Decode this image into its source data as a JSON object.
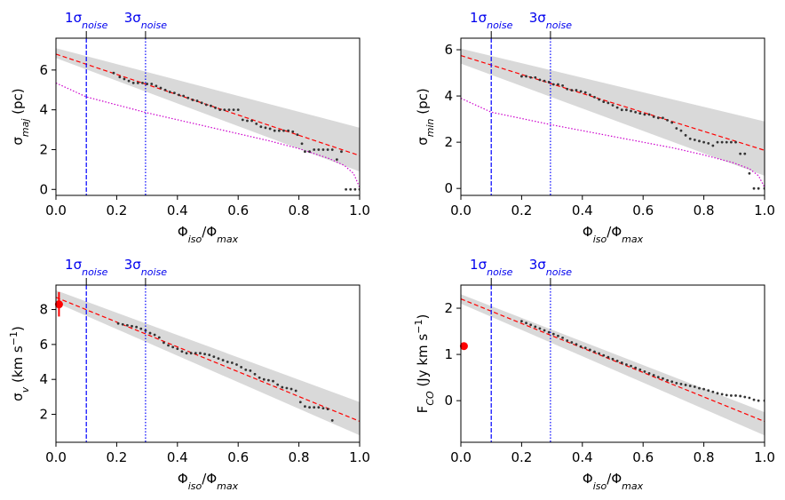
{
  "colors": {
    "band": "#d9d9d9",
    "fit": "#ff0000",
    "points": "#333333",
    "noise_line": "#0000ff",
    "purple": "#cc00cc",
    "marker": "#ff0000"
  },
  "noise_labels": {
    "one_sigma": "1σ",
    "three_sigma": "3σ",
    "sub": "noise"
  },
  "chart_data": [
    {
      "type": "scatter",
      "id": "sigma_maj",
      "title": "",
      "xlabel": "Φiso/Φmax",
      "ylabel": "σmaj (pc)",
      "xlim": [
        0,
        1
      ],
      "ylim": [
        -0.3,
        7.6
      ],
      "xticks": [
        0,
        0.2,
        0.4,
        0.6,
        0.8,
        1.0
      ],
      "xtick_labels": [
        "0.0",
        "0.2",
        "0.4",
        "0.6",
        "0.8",
        "1.0"
      ],
      "yticks": [
        0,
        2,
        4,
        6
      ],
      "ytick_labels": [
        "0",
        "2",
        "4",
        "6"
      ],
      "noise_lines": [
        0.1,
        0.295
      ],
      "fit": {
        "x": [
          0,
          1
        ],
        "y": [
          6.8,
          1.7
        ]
      },
      "band": {
        "x": [
          0,
          1
        ],
        "upper": [
          7.1,
          3.1
        ],
        "lower": [
          6.6,
          0.9
        ]
      },
      "curve": {
        "x": [
          0,
          0.1,
          0.3,
          0.5,
          0.7,
          0.8,
          0.9,
          0.95,
          0.98,
          1.0
        ],
        "y": [
          5.35,
          4.65,
          3.85,
          3.15,
          2.45,
          2.05,
          1.55,
          1.2,
          0.8,
          0.1
        ]
      },
      "points": {
        "x": [
          0.19,
          0.21,
          0.225,
          0.24,
          0.255,
          0.27,
          0.285,
          0.3,
          0.315,
          0.33,
          0.345,
          0.36,
          0.375,
          0.39,
          0.405,
          0.42,
          0.435,
          0.45,
          0.465,
          0.48,
          0.495,
          0.51,
          0.525,
          0.54,
          0.555,
          0.57,
          0.585,
          0.6,
          0.615,
          0.63,
          0.645,
          0.66,
          0.675,
          0.69,
          0.705,
          0.72,
          0.735,
          0.75,
          0.765,
          0.78,
          0.795,
          0.81,
          0.82,
          0.835,
          0.85,
          0.865,
          0.88,
          0.895,
          0.91,
          0.925,
          0.94,
          0.955,
          0.97,
          0.985,
          1.0
        ],
        "y": [
          5.85,
          5.65,
          5.55,
          5.45,
          5.35,
          5.35,
          5.35,
          5.3,
          5.3,
          5.2,
          5.1,
          5.0,
          4.9,
          4.85,
          4.75,
          4.7,
          4.6,
          4.5,
          4.45,
          4.35,
          4.25,
          4.2,
          4.1,
          4.0,
          4.0,
          4.0,
          4.0,
          4.0,
          3.5,
          3.45,
          3.45,
          3.3,
          3.15,
          3.1,
          3.05,
          2.95,
          2.95,
          2.95,
          2.95,
          2.9,
          2.75,
          2.3,
          1.9,
          1.9,
          2.0,
          2.0,
          2.0,
          2.0,
          2.0,
          1.5,
          1.9,
          0.0,
          0.0,
          0.0,
          0.0
        ]
      }
    },
    {
      "type": "scatter",
      "id": "sigma_min",
      "title": "",
      "xlabel": "Φiso/Φmax",
      "ylabel": "σmin (pc)",
      "xlim": [
        0,
        1
      ],
      "ylim": [
        -0.3,
        6.5
      ],
      "xticks": [
        0,
        0.2,
        0.4,
        0.6,
        0.8,
        1.0
      ],
      "xtick_labels": [
        "0.0",
        "0.2",
        "0.4",
        "0.6",
        "0.8",
        "1.0"
      ],
      "yticks": [
        0,
        2,
        4,
        6
      ],
      "ytick_labels": [
        "0",
        "2",
        "4",
        "6"
      ],
      "noise_lines": [
        0.1,
        0.295
      ],
      "fit": {
        "x": [
          0,
          1
        ],
        "y": [
          5.75,
          1.65
        ]
      },
      "band": {
        "x": [
          0,
          1
        ],
        "upper": [
          6.05,
          2.9
        ],
        "lower": [
          5.4,
          0.55
        ]
      },
      "curve": {
        "x": [
          0,
          0.1,
          0.3,
          0.5,
          0.7,
          0.8,
          0.9,
          0.95,
          0.98,
          1.0
        ],
        "y": [
          3.9,
          3.3,
          2.75,
          2.25,
          1.75,
          1.45,
          1.1,
          0.85,
          0.55,
          0.05
        ]
      },
      "points": {
        "x": [
          0.2,
          0.215,
          0.23,
          0.245,
          0.26,
          0.275,
          0.29,
          0.305,
          0.32,
          0.335,
          0.35,
          0.365,
          0.38,
          0.395,
          0.41,
          0.425,
          0.44,
          0.455,
          0.47,
          0.485,
          0.5,
          0.515,
          0.53,
          0.545,
          0.56,
          0.575,
          0.59,
          0.605,
          0.62,
          0.635,
          0.65,
          0.665,
          0.68,
          0.695,
          0.71,
          0.725,
          0.74,
          0.755,
          0.77,
          0.785,
          0.8,
          0.815,
          0.83,
          0.845,
          0.86,
          0.875,
          0.89,
          0.905,
          0.92,
          0.935,
          0.95,
          0.965,
          0.98,
          1.0
        ],
        "y": [
          4.85,
          4.85,
          4.8,
          4.8,
          4.7,
          4.65,
          4.6,
          4.5,
          4.5,
          4.45,
          4.3,
          4.25,
          4.25,
          4.2,
          4.15,
          4.05,
          3.95,
          3.85,
          3.75,
          3.7,
          3.6,
          3.5,
          3.4,
          3.4,
          3.35,
          3.3,
          3.25,
          3.2,
          3.2,
          3.1,
          3.05,
          3.05,
          2.95,
          2.85,
          2.6,
          2.5,
          2.3,
          2.15,
          2.1,
          2.05,
          2.0,
          1.95,
          1.85,
          2.0,
          2.0,
          2.0,
          2.0,
          2.0,
          1.5,
          1.5,
          0.65,
          0.0,
          0.0,
          0.0
        ]
      }
    },
    {
      "type": "scatter",
      "id": "sigma_v",
      "title": "",
      "xlabel": "Φiso/Φmax",
      "ylabel": "σv (km s−1)",
      "xlim": [
        0,
        1
      ],
      "ylim": [
        0.4,
        9.4
      ],
      "xticks": [
        0,
        0.2,
        0.4,
        0.6,
        0.8,
        1.0
      ],
      "xtick_labels": [
        "0.0",
        "0.2",
        "0.4",
        "0.6",
        "0.8",
        "1.0"
      ],
      "yticks": [
        2,
        4,
        6,
        8
      ],
      "ytick_labels": [
        "2",
        "4",
        "6",
        "8"
      ],
      "noise_lines": [
        0.1,
        0.295
      ],
      "fit": {
        "x": [
          0,
          1
        ],
        "y": [
          8.7,
          1.6
        ]
      },
      "band": {
        "x": [
          0,
          1
        ],
        "upper": [
          9.1,
          2.7
        ],
        "lower": [
          8.4,
          0.8
        ]
      },
      "marker": {
        "x": 0.01,
        "y": 8.3,
        "yerr": 0.7
      },
      "points": {
        "x": [
          0.205,
          0.22,
          0.235,
          0.25,
          0.265,
          0.28,
          0.295,
          0.31,
          0.325,
          0.34,
          0.355,
          0.37,
          0.385,
          0.4,
          0.415,
          0.43,
          0.445,
          0.46,
          0.475,
          0.49,
          0.505,
          0.52,
          0.535,
          0.55,
          0.565,
          0.58,
          0.595,
          0.61,
          0.625,
          0.64,
          0.655,
          0.67,
          0.685,
          0.7,
          0.715,
          0.73,
          0.745,
          0.76,
          0.775,
          0.79,
          0.805,
          0.82,
          0.835,
          0.85,
          0.865,
          0.88,
          0.895,
          0.91
        ],
        "y": [
          7.2,
          7.15,
          7.1,
          7.05,
          7.0,
          6.9,
          6.8,
          6.65,
          6.55,
          6.4,
          6.1,
          5.95,
          5.85,
          5.75,
          5.6,
          5.5,
          5.5,
          5.5,
          5.5,
          5.45,
          5.4,
          5.3,
          5.2,
          5.1,
          5.0,
          4.95,
          4.85,
          4.7,
          4.55,
          4.5,
          4.3,
          4.1,
          4.0,
          3.95,
          3.9,
          3.7,
          3.55,
          3.5,
          3.45,
          3.35,
          2.7,
          2.45,
          2.4,
          2.4,
          2.4,
          2.35,
          2.3,
          1.65
        ]
      }
    },
    {
      "type": "scatter",
      "id": "flux_co",
      "title": "",
      "xlabel": "Φiso/Φmax",
      "ylabel": "FCO (Jy km s−1)",
      "xlim": [
        0,
        1
      ],
      "ylim": [
        -0.9,
        2.5
      ],
      "xticks": [
        0,
        0.2,
        0.4,
        0.6,
        0.8,
        1.0
      ],
      "xtick_labels": [
        "0.0",
        "0.2",
        "0.4",
        "0.6",
        "0.8",
        "1.0"
      ],
      "yticks": [
        0,
        1,
        2
      ],
      "ytick_labels": [
        "0",
        "1",
        "2"
      ],
      "noise_lines": [
        0.1,
        0.295
      ],
      "fit": {
        "x": [
          0,
          1
        ],
        "y": [
          2.2,
          -0.45
        ]
      },
      "band": {
        "x": [
          0,
          1
        ],
        "upper": [
          2.3,
          -0.25
        ],
        "lower": [
          2.1,
          -0.75
        ]
      },
      "marker": {
        "x": 0.01,
        "y": 1.18,
        "yerr": 0
      },
      "points": {
        "x": [
          0.2,
          0.215,
          0.23,
          0.245,
          0.26,
          0.275,
          0.29,
          0.305,
          0.32,
          0.335,
          0.35,
          0.365,
          0.38,
          0.395,
          0.41,
          0.425,
          0.44,
          0.455,
          0.47,
          0.485,
          0.5,
          0.515,
          0.53,
          0.545,
          0.56,
          0.575,
          0.59,
          0.605,
          0.62,
          0.635,
          0.65,
          0.665,
          0.68,
          0.695,
          0.71,
          0.725,
          0.74,
          0.755,
          0.77,
          0.785,
          0.8,
          0.815,
          0.83,
          0.845,
          0.86,
          0.875,
          0.89,
          0.905,
          0.92,
          0.935,
          0.95,
          0.965,
          0.98,
          1.0
        ],
        "y": [
          1.72,
          1.68,
          1.64,
          1.6,
          1.56,
          1.52,
          1.48,
          1.44,
          1.4,
          1.36,
          1.3,
          1.26,
          1.22,
          1.17,
          1.14,
          1.1,
          1.06,
          1.02,
          0.98,
          0.94,
          0.9,
          0.86,
          0.82,
          0.78,
          0.75,
          0.71,
          0.67,
          0.63,
          0.59,
          0.55,
          0.51,
          0.48,
          0.44,
          0.41,
          0.38,
          0.36,
          0.34,
          0.32,
          0.3,
          0.27,
          0.25,
          0.22,
          0.19,
          0.16,
          0.14,
          0.12,
          0.11,
          0.11,
          0.1,
          0.08,
          0.06,
          0.02,
          0.0,
          0.0
        ]
      }
    }
  ]
}
